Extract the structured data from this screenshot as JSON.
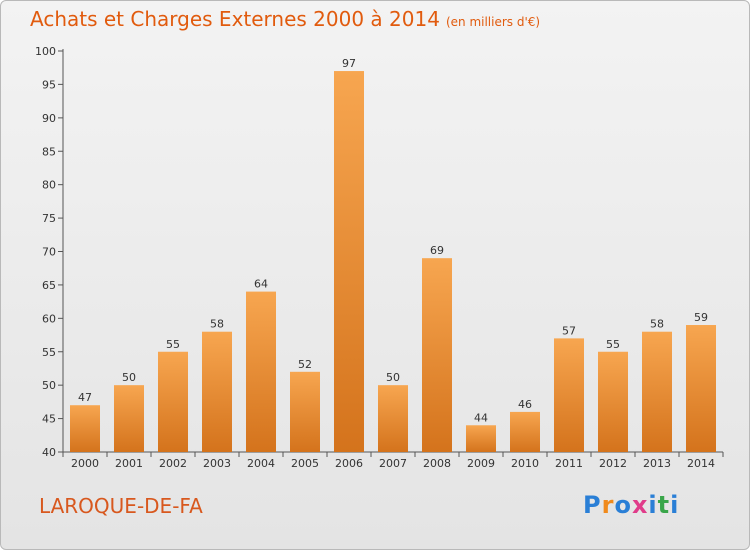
{
  "header": {
    "title": "Achats et Charges Externes 2000 à 2014",
    "unit": "(en milliers d'€)"
  },
  "footer": {
    "commune": "LAROQUE-DE-FA",
    "brand_letters": [
      "P",
      "r",
      "o",
      "x",
      "i",
      "t",
      "i"
    ],
    "brand_colors": [
      "#2a7fd6",
      "#f08a1c",
      "#2a7fd6",
      "#e03c8a",
      "#2a7fd6",
      "#3aa64a",
      "#2a7fd6"
    ]
  },
  "colors": {
    "bar_light": "#f7a650",
    "bar_dark": "#d4731c",
    "axis": "#555555",
    "title": "#e15b0e"
  },
  "chart_data": {
    "type": "bar",
    "categories": [
      "2000",
      "2001",
      "2002",
      "2003",
      "2004",
      "2005",
      "2006",
      "2007",
      "2008",
      "2009",
      "2010",
      "2011",
      "2012",
      "2013",
      "2014"
    ],
    "values": [
      47,
      50,
      55,
      58,
      64,
      52,
      97,
      50,
      69,
      44,
      46,
      57,
      55,
      58,
      59
    ],
    "ylim": [
      40,
      100
    ],
    "yticks": [
      40,
      45,
      50,
      55,
      60,
      65,
      70,
      75,
      80,
      85,
      90,
      95,
      100
    ],
    "grid": false,
    "legend": "none"
  }
}
